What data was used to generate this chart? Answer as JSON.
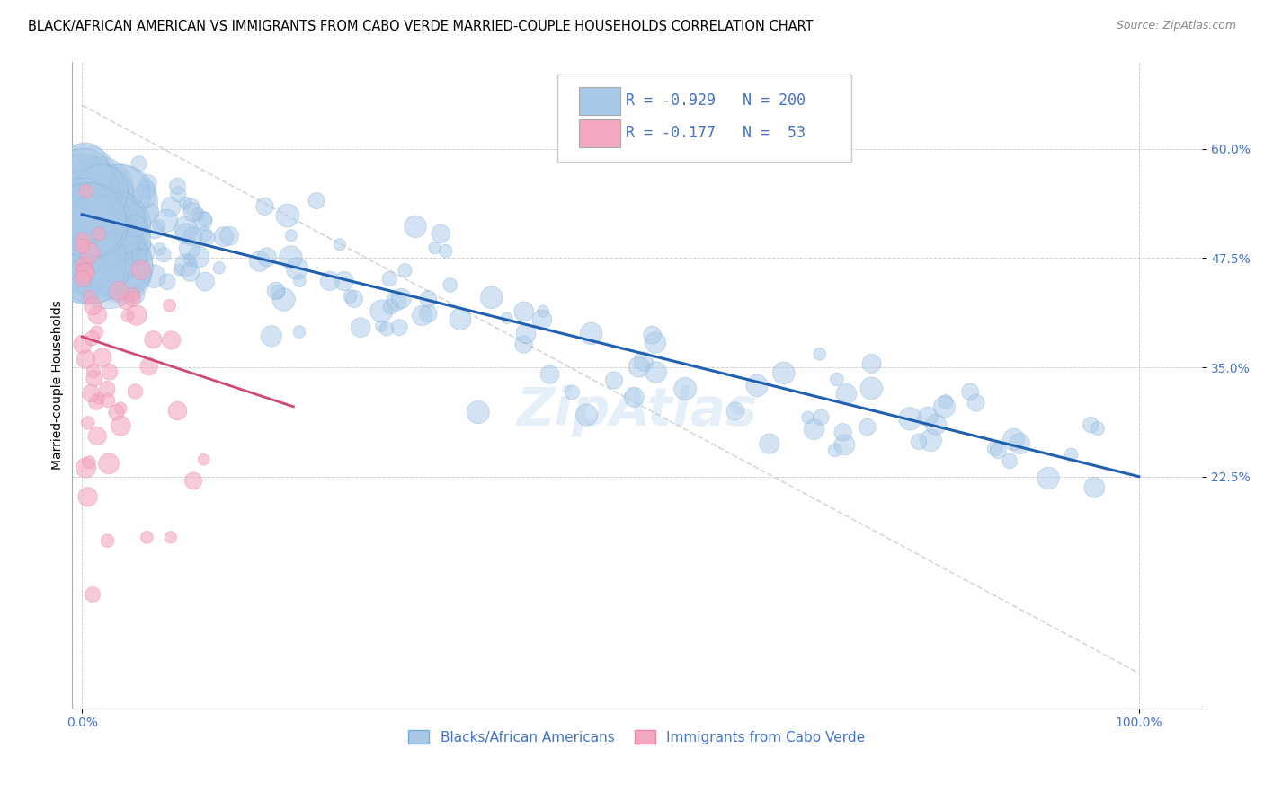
{
  "title": "BLACK/AFRICAN AMERICAN VS IMMIGRANTS FROM CABO VERDE MARRIED-COUPLE HOUSEHOLDS CORRELATION CHART",
  "source": "Source: ZipAtlas.com",
  "ylabel": "Married-couple Households",
  "blue_R": -0.929,
  "blue_N": 200,
  "pink_R": -0.177,
  "pink_N": 53,
  "blue_label": "Blacks/African Americans",
  "pink_label": "Immigrants from Cabo Verde",
  "blue_color": "#a8c8e8",
  "pink_color": "#f4a8c0",
  "blue_edge_color": "#7aadd4",
  "pink_edge_color": "#e888a8",
  "blue_line_color": "#2060b0",
  "pink_line_color": "#d04878",
  "diagonal_color": "#cccccc",
  "tick_color": "#4472c4",
  "ytick_labels": [
    "60.0%",
    "47.5%",
    "35.0%",
    "22.5%"
  ],
  "ytick_values": [
    0.6,
    0.475,
    0.35,
    0.225
  ],
  "xtick_labels": [
    "0.0%",
    "100.0%"
  ],
  "xtick_values": [
    0.0,
    1.0
  ],
  "xlim": [
    -0.01,
    1.06
  ],
  "ylim": [
    -0.04,
    0.7
  ],
  "watermark": "ZipAtlas",
  "title_fontsize": 10.5,
  "source_fontsize": 9,
  "legend_fontsize": 12,
  "axis_label_fontsize": 10,
  "tick_label_fontsize": 10,
  "blue_trendline_x": [
    0.0,
    1.0
  ],
  "blue_trendline_y": [
    0.525,
    0.225
  ],
  "pink_trendline_x": [
    0.0,
    0.2
  ],
  "pink_trendline_y": [
    0.385,
    0.305
  ]
}
